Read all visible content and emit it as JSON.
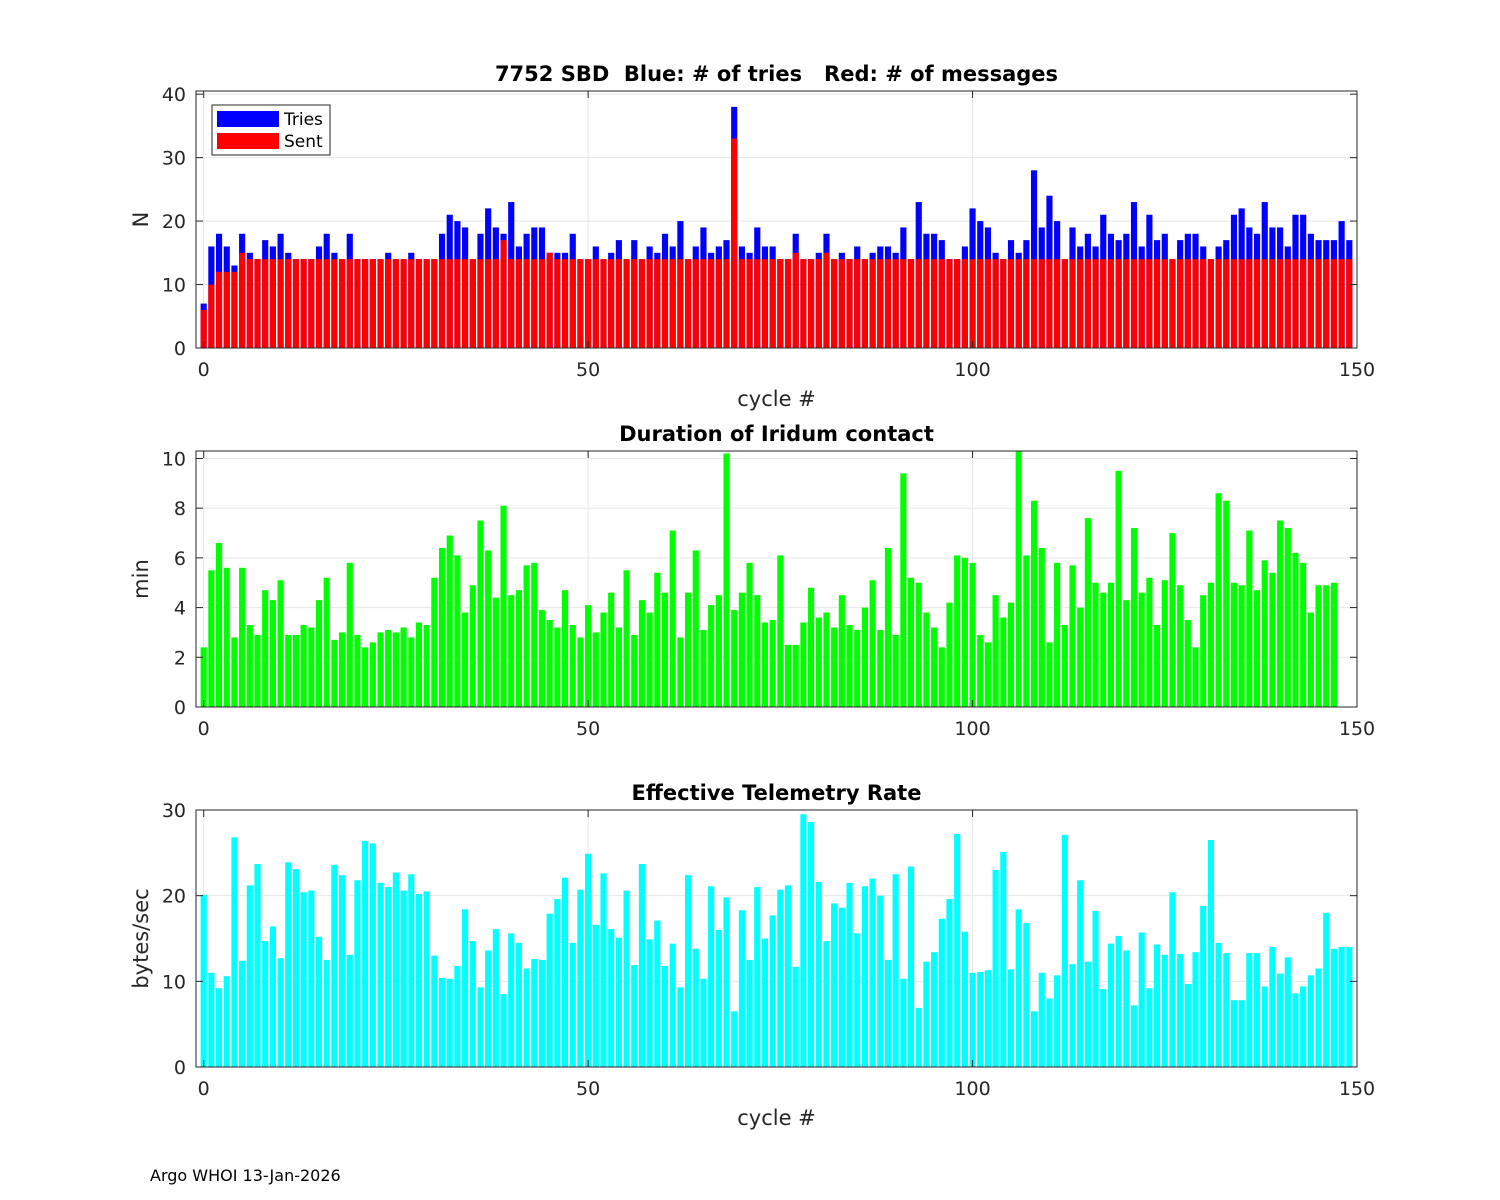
{
  "footer": {
    "text": "Argo WHOI 13-Jan-2026"
  },
  "colors": {
    "tries": "#0000ff",
    "sent": "#ff0000",
    "duration": "#00ff00",
    "rate": "#00ffff",
    "grid": "#e6e6e6",
    "axis": "#262626"
  },
  "chart_data": [
    {
      "type": "bar",
      "stacked_overlay": true,
      "title": "7752 SBD  Blue: # of tries   Red: # of messages",
      "xlabel": "cycle #",
      "ylabel": "N",
      "xlim": [
        -1,
        150
      ],
      "ylim": [
        0,
        40.5
      ],
      "xticks": [
        0,
        50,
        100,
        150
      ],
      "yticks": [
        0,
        10,
        20,
        30,
        40
      ],
      "grid": true,
      "legend": {
        "position": "top-left",
        "entries": [
          "Tries",
          "Sent"
        ]
      },
      "x_start": 0,
      "series": [
        {
          "name": "Tries",
          "color": "#0000ff",
          "values": [
            7,
            16,
            18,
            16,
            13,
            18,
            15,
            14,
            17,
            16,
            18,
            15,
            14,
            14,
            14,
            16,
            18,
            15,
            14,
            18,
            14,
            14,
            14,
            14,
            15,
            14,
            14,
            15,
            14,
            14,
            14,
            18,
            21,
            20,
            19,
            14,
            18,
            22,
            19,
            18,
            23,
            16,
            18,
            19,
            19,
            15,
            15,
            15,
            18,
            14,
            14,
            16,
            14,
            15,
            17,
            14,
            17,
            14,
            16,
            15,
            18,
            16,
            20,
            14,
            16,
            19,
            15,
            16,
            17,
            38,
            16,
            15,
            19,
            16,
            16,
            14,
            14,
            18,
            14,
            14,
            15,
            18,
            14,
            15,
            14,
            16,
            14,
            15,
            16,
            16,
            15,
            19,
            14,
            23,
            18,
            18,
            17,
            14,
            14,
            16,
            22,
            20,
            19,
            15,
            14,
            17,
            15,
            17,
            28,
            19,
            24,
            20,
            14,
            19,
            16,
            18,
            16,
            21,
            18,
            17,
            18,
            23,
            16,
            21,
            17,
            18,
            14,
            17,
            18,
            18,
            16,
            14,
            16,
            17,
            21,
            22,
            19,
            18,
            23,
            19,
            19,
            16,
            21,
            21,
            18,
            17,
            17,
            17,
            20,
            17
          ]
        },
        {
          "name": "Sent",
          "color": "#ff0000",
          "values": [
            6,
            10,
            12,
            12,
            12,
            15,
            14,
            14,
            14,
            14,
            14,
            14,
            14,
            14,
            14,
            14,
            14,
            14,
            14,
            14,
            14,
            14,
            14,
            14,
            14,
            14,
            14,
            14,
            14,
            14,
            14,
            14,
            14,
            14,
            14,
            14,
            14,
            14,
            14,
            17,
            14,
            14,
            14,
            14,
            14,
            15,
            14,
            14,
            14,
            14,
            14,
            14,
            14,
            14,
            14,
            14,
            14,
            14,
            14,
            14,
            14,
            14,
            14,
            14,
            14,
            14,
            14,
            14,
            14,
            33,
            14,
            14,
            14,
            14,
            14,
            14,
            14,
            15,
            14,
            14,
            14,
            15,
            14,
            14,
            14,
            14,
            14,
            14,
            14,
            14,
            14,
            14,
            14,
            14,
            14,
            14,
            14,
            14,
            14,
            14,
            14,
            14,
            14,
            14,
            14,
            14,
            14,
            14,
            14,
            14,
            14,
            14,
            14,
            14,
            14,
            14,
            14,
            14,
            14,
            14,
            14,
            14,
            14,
            14,
            14,
            14,
            14,
            14,
            14,
            14,
            14,
            14,
            14,
            14,
            14,
            14,
            14,
            14,
            14,
            14,
            14,
            14,
            14,
            14,
            14,
            14,
            14,
            14,
            14,
            14
          ]
        }
      ]
    },
    {
      "type": "bar",
      "title": "Duration of Iridum contact",
      "xlabel": "",
      "ylabel": "min",
      "xlim": [
        -1,
        150
      ],
      "ylim": [
        0,
        10.3
      ],
      "xticks": [
        0,
        50,
        100,
        150
      ],
      "yticks": [
        0,
        2,
        4,
        6,
        8,
        10
      ],
      "grid": true,
      "x_start": 0,
      "series": [
        {
          "name": "Duration",
          "color": "#00ff00",
          "values": [
            2.4,
            5.5,
            6.6,
            5.6,
            2.8,
            5.6,
            3.3,
            2.9,
            4.7,
            4.3,
            5.1,
            2.9,
            2.9,
            3.3,
            3.2,
            4.3,
            5.2,
            2.7,
            3.0,
            5.8,
            2.9,
            2.4,
            2.6,
            3.0,
            3.1,
            3.0,
            3.2,
            2.8,
            3.4,
            3.3,
            5.2,
            6.4,
            6.9,
            6.1,
            3.8,
            4.9,
            7.5,
            6.3,
            4.4,
            8.1,
            4.5,
            4.7,
            5.7,
            5.8,
            3.9,
            3.5,
            3.2,
            4.7,
            3.3,
            2.8,
            4.1,
            3.0,
            3.8,
            4.6,
            3.2,
            5.5,
            2.9,
            4.3,
            3.8,
            5.4,
            4.6,
            7.1,
            2.8,
            4.6,
            6.3,
            3.1,
            4.1,
            4.5,
            10.2,
            3.9,
            4.6,
            5.8,
            4.5,
            3.4,
            3.5,
            6.1,
            2.5,
            2.5,
            3.4,
            4.8,
            3.6,
            3.8,
            3.2,
            4.5,
            3.3,
            3.1,
            4.0,
            5.1,
            3.1,
            6.4,
            2.9,
            9.4,
            5.2,
            5.0,
            3.8,
            3.2,
            2.4,
            4.2,
            6.1,
            6.0,
            5.8,
            2.9,
            2.6,
            4.5,
            3.6,
            4.2,
            10.4,
            6.1,
            8.3,
            6.4,
            2.6,
            5.8,
            3.3,
            5.7,
            4.0,
            7.6,
            5.0,
            4.6,
            5.0,
            9.5,
            4.3,
            7.2,
            4.6,
            5.2,
            3.3,
            5.1,
            7.0,
            4.9,
            3.5,
            2.4,
            4.5,
            5.0,
            8.6,
            8.3,
            5.0,
            4.9,
            7.1,
            4.7,
            5.9,
            5.4,
            7.5,
            7.2,
            6.2,
            5.8,
            3.8,
            4.9,
            4.9,
            5.0
          ]
        }
      ]
    },
    {
      "type": "bar",
      "title": "Effective Telemetry Rate",
      "xlabel": "cycle #",
      "ylabel": "bytes/sec",
      "xlim": [
        -1,
        150
      ],
      "ylim": [
        0,
        30
      ],
      "xticks": [
        0,
        50,
        100,
        150
      ],
      "yticks": [
        0,
        10,
        20,
        30
      ],
      "grid": true,
      "x_start": 0,
      "series": [
        {
          "name": "Rate",
          "color": "#00ffff",
          "values": [
            20.1,
            11.0,
            9.2,
            10.6,
            26.8,
            12.4,
            21.2,
            23.7,
            14.7,
            16.4,
            12.7,
            23.9,
            23.1,
            20.4,
            20.6,
            15.2,
            12.5,
            23.6,
            22.4,
            13.1,
            21.8,
            26.4,
            26.1,
            21.5,
            21.0,
            22.7,
            20.6,
            22.5,
            20.2,
            20.5,
            13.0,
            10.4,
            10.3,
            11.8,
            18.4,
            14.7,
            9.3,
            13.6,
            16.1,
            8.5,
            15.6,
            14.5,
            11.5,
            12.6,
            12.5,
            17.9,
            19.6,
            22.1,
            14.5,
            20.7,
            24.9,
            16.6,
            22.6,
            16.1,
            15.1,
            20.6,
            11.9,
            23.7,
            14.9,
            17.1,
            11.8,
            14.4,
            9.3,
            22.4,
            13.8,
            10.3,
            21.1,
            16.0,
            19.8,
            6.5,
            18.3,
            12.5,
            21.0,
            15.0,
            17.7,
            20.7,
            21.2,
            11.7,
            29.5,
            28.6,
            21.6,
            14.7,
            19.1,
            18.6,
            21.5,
            15.6,
            21.1,
            22.0,
            20.0,
            12.5,
            22.5,
            10.3,
            23.4,
            6.9,
            12.3,
            13.4,
            17.3,
            19.6,
            27.2,
            15.8,
            11.0,
            11.1,
            11.3,
            23.0,
            25.1,
            11.4,
            18.4,
            16.8,
            6.5,
            11.0,
            8.0,
            10.7,
            27.1,
            12.0,
            21.8,
            12.3,
            18.2,
            9.1,
            14.4,
            15.3,
            13.6,
            7.2,
            15.7,
            9.2,
            14.3,
            13.1,
            20.4,
            13.2,
            9.7,
            13.4,
            18.8,
            26.5,
            14.5,
            13.3,
            7.8,
            7.8,
            13.3,
            13.3,
            9.4,
            14.0,
            10.9,
            12.8,
            8.6,
            9.4,
            10.7,
            11.5,
            18.0,
            13.8,
            14.0,
            14.0
          ]
        }
      ]
    }
  ]
}
